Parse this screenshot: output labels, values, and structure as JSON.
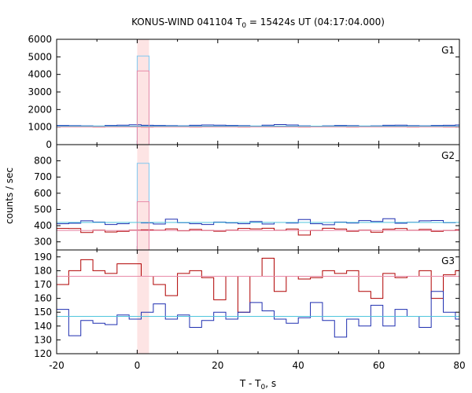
{
  "title": {
    "prefix": "KONUS-WIND 041104 T",
    "sub": "0",
    "suffix": " = 15424s UT (04:17:04.000)"
  },
  "ylabel": "counts / sec",
  "xlabel": {
    "prefix": "T - T",
    "sub": "0",
    "suffix": ", s"
  },
  "colors": {
    "red": "#b00000",
    "blue": "#1f2fb0",
    "cyan": "#4fc6dd",
    "pink": "#e88aa8",
    "light_blue": "#7fc8f0",
    "shade": "#fde4e4",
    "frame": "#000000"
  },
  "chart_data": [
    {
      "type": "line",
      "panel_label": "G1",
      "ylim": [
        0,
        6000
      ],
      "yticks": [
        0,
        1000,
        2000,
        3000,
        4000,
        5000,
        6000
      ],
      "xlim": [
        -20,
        80
      ],
      "xticks": [
        -20,
        0,
        20,
        40,
        60,
        80
      ],
      "highlight_interval": [
        0,
        2.944
      ],
      "series": [
        {
          "role": "background-light-curve",
          "color": "blue",
          "style": "step",
          "x": [
            -20,
            -17,
            -14,
            -11,
            -8,
            -5,
            -2,
            1,
            4,
            7,
            10,
            13,
            16,
            19,
            22,
            25,
            28,
            31,
            34,
            37,
            40,
            43,
            46,
            49,
            52,
            55,
            58,
            61,
            64,
            67,
            70,
            73,
            76,
            79,
            80
          ],
          "y": [
            1090,
            1080,
            1070,
            1060,
            1090,
            1110,
            1130,
            1100,
            1090,
            1080,
            1070,
            1100,
            1120,
            1110,
            1090,
            1080,
            1060,
            1110,
            1140,
            1120,
            1070,
            1050,
            1070,
            1090,
            1080,
            1060,
            1070,
            1100,
            1110,
            1080,
            1070,
            1090,
            1100,
            1120,
            1120
          ]
        },
        {
          "role": "background-light-curve",
          "color": "red",
          "style": "step",
          "x": [
            -20,
            -17,
            -14,
            -11,
            -8,
            -5,
            -2,
            1,
            4,
            7,
            10,
            13,
            16,
            19,
            22,
            25,
            28,
            31,
            34,
            37,
            40,
            43,
            46,
            49,
            52,
            55,
            58,
            61,
            64,
            67,
            70,
            73,
            76,
            79,
            80
          ],
          "y": [
            1020,
            1010,
            1040,
            1000,
            1030,
            1020,
            1040,
            1000,
            1010,
            1030,
            1020,
            1000,
            1020,
            1010,
            1030,
            1000,
            1020,
            1010,
            1030,
            1020,
            1000,
            1020,
            1010,
            1030,
            1000,
            1020,
            1010,
            1030,
            1020,
            1000,
            1010,
            1030,
            1000,
            1010,
            1010
          ]
        },
        {
          "role": "burst-bin",
          "color": "light_blue",
          "x": [
            0,
            2.944
          ],
          "y": 5050
        },
        {
          "role": "burst-bin",
          "color": "pink",
          "x": [
            0,
            2.944
          ],
          "y": 4200
        },
        {
          "role": "background-level",
          "color": "cyan",
          "y": 1050
        },
        {
          "role": "background-level",
          "color": "pink",
          "y": 1010
        }
      ]
    },
    {
      "type": "line",
      "panel_label": "G2",
      "ylim": [
        250,
        900
      ],
      "yticks": [
        300,
        400,
        500,
        600,
        700,
        800
      ],
      "xlim": [
        -20,
        80
      ],
      "xticks": [
        -20,
        0,
        20,
        40,
        60,
        80
      ],
      "highlight_interval": [
        0,
        2.944
      ],
      "series": [
        {
          "role": "background-light-curve",
          "color": "blue",
          "style": "step",
          "x": [
            -20,
            -17,
            -14,
            -11,
            -8,
            -5,
            -2,
            1,
            4,
            7,
            10,
            13,
            16,
            19,
            22,
            25,
            28,
            31,
            34,
            37,
            40,
            43,
            46,
            49,
            52,
            55,
            58,
            61,
            64,
            67,
            70,
            73,
            76,
            79,
            80
          ],
          "y": [
            412,
            415,
            430,
            422,
            407,
            412,
            420,
            417,
            410,
            440,
            418,
            412,
            407,
            422,
            417,
            412,
            425,
            410,
            420,
            416,
            438,
            412,
            406,
            422,
            416,
            431,
            426,
            443,
            415,
            421,
            430,
            432,
            418,
            420,
            420
          ]
        },
        {
          "role": "background-light-curve",
          "color": "red",
          "style": "step",
          "x": [
            -20,
            -17,
            -14,
            -11,
            -8,
            -5,
            -2,
            1,
            4,
            7,
            10,
            13,
            16,
            19,
            22,
            25,
            28,
            31,
            34,
            37,
            40,
            43,
            46,
            49,
            52,
            55,
            58,
            61,
            64,
            67,
            70,
            73,
            76,
            79,
            80
          ],
          "y": [
            383,
            382,
            358,
            372,
            361,
            365,
            372,
            374,
            372,
            380,
            368,
            377,
            370,
            366,
            372,
            383,
            380,
            384,
            371,
            379,
            342,
            370,
            384,
            379,
            366,
            372,
            360,
            378,
            382,
            371,
            377,
            365,
            370,
            375,
            375
          ]
        },
        {
          "role": "burst-bin",
          "color": "light_blue",
          "x": [
            0,
            2.944
          ],
          "y": 785
        },
        {
          "role": "burst-bin",
          "color": "pink",
          "x": [
            0,
            2.944
          ],
          "y": 548
        },
        {
          "role": "background-level",
          "color": "cyan",
          "y": 420
        },
        {
          "role": "background-level",
          "color": "pink",
          "y": 370
        }
      ]
    },
    {
      "type": "line",
      "panel_label": "G3",
      "ylim": [
        120,
        195
      ],
      "yticks": [
        120,
        130,
        140,
        150,
        160,
        170,
        180,
        190
      ],
      "xlim": [
        -20,
        80
      ],
      "xticks": [
        -20,
        0,
        20,
        40,
        60,
        80
      ],
      "highlight_interval": [
        0,
        2.944
      ],
      "series": [
        {
          "role": "background-light-curve",
          "color": "red",
          "style": "step",
          "x": [
            -20,
            -17,
            -14,
            -11,
            -8,
            -5,
            -2,
            1,
            4,
            7,
            10,
            13,
            16,
            19,
            22,
            25,
            28,
            31,
            34,
            37,
            40,
            43,
            46,
            49,
            52,
            55,
            58,
            61,
            64,
            67,
            70,
            73,
            76,
            79,
            80
          ],
          "y": [
            170,
            180,
            188,
            180,
            178,
            185,
            185,
            176,
            170,
            162,
            178,
            180,
            175,
            159,
            176,
            150,
            176,
            189,
            165,
            176,
            174,
            175,
            180,
            178,
            180,
            165,
            160,
            178,
            175,
            176,
            180,
            160,
            177,
            180,
            185
          ]
        },
        {
          "role": "background-light-curve",
          "color": "blue",
          "style": "step",
          "x": [
            -20,
            -17,
            -14,
            -11,
            -8,
            -5,
            -2,
            1,
            4,
            7,
            10,
            13,
            16,
            19,
            22,
            25,
            28,
            31,
            34,
            37,
            40,
            43,
            46,
            49,
            52,
            55,
            58,
            61,
            64,
            67,
            70,
            73,
            76,
            79,
            80
          ],
          "y": [
            152,
            133,
            144,
            142,
            141,
            148,
            145,
            150,
            156,
            145,
            148,
            139,
            144,
            150,
            145,
            150,
            157,
            151,
            145,
            142,
            146,
            157,
            144,
            132,
            145,
            140,
            155,
            140,
            152,
            147,
            139,
            165,
            150,
            145,
            153
          ]
        },
        {
          "role": "background-level",
          "color": "pink",
          "y": 176
        },
        {
          "role": "background-level",
          "color": "cyan",
          "y": 147
        }
      ]
    }
  ]
}
